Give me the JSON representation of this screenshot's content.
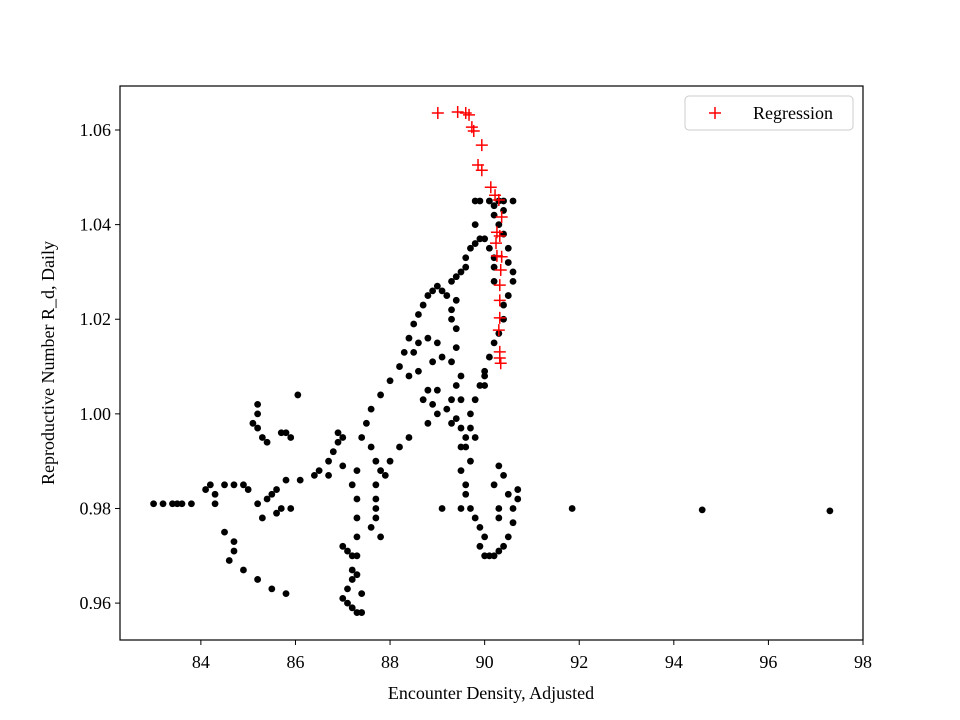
{
  "chart_data": {
    "type": "scatter",
    "xlabel": "Encounter Density, Adjusted",
    "ylabel": "Reproductive Number R_d, Daily",
    "xlim": [
      82.29,
      98
    ],
    "ylim": [
      0.9522,
      1.0693
    ],
    "xticks": [
      84,
      86,
      88,
      90,
      92,
      94,
      96,
      98
    ],
    "yticks": [
      0.96,
      0.98,
      {
        "value": 1,
        "label": "1.00"
      },
      1.02,
      1.04,
      1.06
    ],
    "legend": "upper right",
    "series": [
      {
        "color": "#000000",
        "marker": "o",
        "x": [
          83.0,
          83.2,
          83.4,
          83.5,
          83.6,
          83.8,
          84.1,
          84.2,
          84.3,
          84.5,
          84.7,
          84.9,
          85.0,
          84.3,
          84.5,
          84.7,
          84.7,
          84.6,
          84.9,
          85.2,
          85.5,
          85.8,
          85.2,
          85.3,
          85.6,
          85.7,
          85.9,
          85.4,
          85.5,
          85.6,
          85.8,
          85.2,
          85.2,
          85.1,
          85.2,
          85.3,
          85.4,
          85.7,
          85.8,
          85.9,
          86.05,
          86.1,
          86.4,
          86.5,
          86.7,
          86.8,
          86.9,
          86.9,
          87.0,
          87.0,
          86.7,
          87.0,
          87.1,
          87.2,
          87.2,
          87.2,
          87.1,
          87.0,
          87.1,
          87.2,
          87.3,
          87.4,
          87.4,
          87.3,
          87.3,
          87.3,
          87.3,
          87.3,
          87.2,
          87.3,
          87.4,
          87.5,
          87.6,
          87.8,
          88.0,
          88.2,
          88.3,
          88.4,
          88.5,
          88.6,
          88.7,
          88.8,
          88.9,
          89.0,
          89.1,
          89.2,
          89.3,
          89.4,
          87.6,
          87.7,
          87.8,
          87.9,
          87.7,
          87.7,
          87.7,
          87.7,
          87.6,
          87.8,
          88.0,
          88.2,
          88.4,
          88.4,
          88.6,
          88.5,
          88.6,
          88.8,
          89.0,
          89.1,
          89.3,
          88.9,
          88.8,
          88.9,
          88.8,
          89.0,
          89.2,
          89.4,
          89.5,
          89.6,
          89.7,
          89.5,
          89.5,
          89.4,
          89.3,
          88.7,
          89.0,
          89.6,
          89.8,
          89.3,
          89.4,
          89.3,
          89.4,
          89.3,
          89.4,
          89.5,
          89.6,
          89.6,
          89.7,
          89.8,
          89.9,
          90.0,
          90.1,
          90.2,
          90.2,
          90.2,
          90.5,
          90.6,
          90.6,
          90.5,
          90.4,
          90.4,
          90.3,
          90.2,
          90.1,
          90.0,
          90.0,
          90.5,
          90.4,
          90.3,
          90.2,
          90.2,
          90.3,
          90.4,
          90.6,
          89.8,
          89.9,
          90.1,
          89.8,
          90.4,
          89.5,
          89.6,
          89.6,
          89.7,
          89.5,
          89.1,
          89.8,
          89.9,
          90.0,
          89.9,
          90.0,
          90.1,
          90.2,
          90.3,
          90.4,
          90.5,
          90.6,
          90.6,
          90.7,
          90.7,
          90.3,
          90.2,
          90.4,
          90.5,
          90.3,
          90.3,
          89.7,
          89.8,
          89.9,
          90.0,
          89.5,
          89.7,
          91.85,
          94.6,
          97.3
        ],
        "values": [
          0.981,
          0.981,
          0.981,
          0.981,
          0.981,
          0.981,
          0.984,
          0.985,
          0.983,
          0.985,
          0.985,
          0.985,
          0.984,
          0.981,
          0.975,
          0.973,
          0.971,
          0.969,
          0.967,
          0.965,
          0.963,
          0.962,
          0.981,
          0.978,
          0.979,
          0.98,
          0.98,
          0.982,
          0.983,
          0.984,
          0.986,
          1.002,
          1.0,
          0.998,
          0.997,
          0.995,
          0.994,
          0.996,
          0.996,
          0.995,
          1.004,
          0.986,
          0.987,
          0.988,
          0.99,
          0.992,
          0.994,
          0.996,
          0.995,
          0.989,
          0.987,
          0.972,
          0.971,
          0.97,
          0.967,
          0.965,
          0.963,
          0.961,
          0.96,
          0.959,
          0.958,
          0.958,
          0.962,
          0.966,
          0.97,
          0.974,
          0.978,
          0.982,
          0.985,
          0.988,
          0.995,
          0.998,
          1.001,
          1.004,
          1.007,
          1.01,
          1.013,
          1.016,
          1.019,
          1.021,
          1.023,
          1.025,
          1.026,
          1.027,
          1.026,
          1.025,
          1.022,
          1.018,
          0.993,
          0.99,
          0.988,
          0.987,
          0.985,
          0.982,
          0.98,
          0.978,
          0.976,
          0.974,
          0.99,
          0.993,
          0.995,
          1.008,
          1.009,
          1.013,
          1.015,
          1.016,
          1.015,
          1.012,
          1.011,
          1.011,
          1.005,
          1.002,
          0.998,
          1.0,
          1.001,
          0.999,
          0.997,
          0.995,
          0.997,
          1.003,
          1.008,
          1.006,
          1.003,
          1.003,
          1.005,
          0.993,
          0.995,
          0.998,
          1.014,
          1.02,
          1.024,
          1.028,
          1.029,
          1.03,
          1.031,
          1.033,
          1.035,
          1.036,
          1.037,
          1.037,
          1.035,
          1.033,
          1.031,
          1.028,
          1.032,
          1.03,
          1.028,
          1.025,
          1.023,
          1.02,
          1.017,
          1.015,
          1.012,
          1.009,
          1.006,
          1.035,
          1.038,
          1.04,
          1.042,
          1.044,
          1.045,
          1.045,
          1.045,
          1.045,
          1.045,
          1.045,
          1.04,
          1.043,
          0.988,
          0.985,
          0.983,
          0.98,
          0.98,
          0.98,
          0.978,
          0.976,
          0.974,
          0.972,
          0.97,
          0.97,
          0.97,
          0.971,
          0.972,
          0.974,
          0.977,
          0.98,
          0.982,
          0.984,
          0.989,
          0.985,
          0.987,
          0.983,
          0.98,
          0.978,
          1.0,
          1.003,
          1.006,
          1.008,
          0.993,
          0.99,
          0.98,
          0.9797,
          0.9795
        ]
      },
      {
        "name": "Regression",
        "color": "#ff0000",
        "marker": "+",
        "x": [
          89.01,
          89.43,
          89.6,
          89.67,
          89.73,
          89.77,
          89.94,
          89.86,
          89.94,
          90.13,
          90.22,
          90.3,
          90.36,
          90.26,
          90.32,
          90.24,
          90.26,
          90.36,
          90.34,
          90.32,
          90.32,
          90.32,
          90.3,
          90.32,
          90.32,
          90.34
        ],
        "values": [
          1.0636,
          1.0638,
          1.0636,
          1.0632,
          1.0606,
          1.0598,
          1.0568,
          1.0526,
          1.0515,
          1.0479,
          1.0462,
          1.0452,
          1.0416,
          1.0384,
          1.0376,
          1.0361,
          1.0334,
          1.0332,
          1.0304,
          1.0272,
          1.024,
          1.0203,
          1.0177,
          1.0131,
          1.0118,
          1.0107
        ]
      }
    ]
  }
}
